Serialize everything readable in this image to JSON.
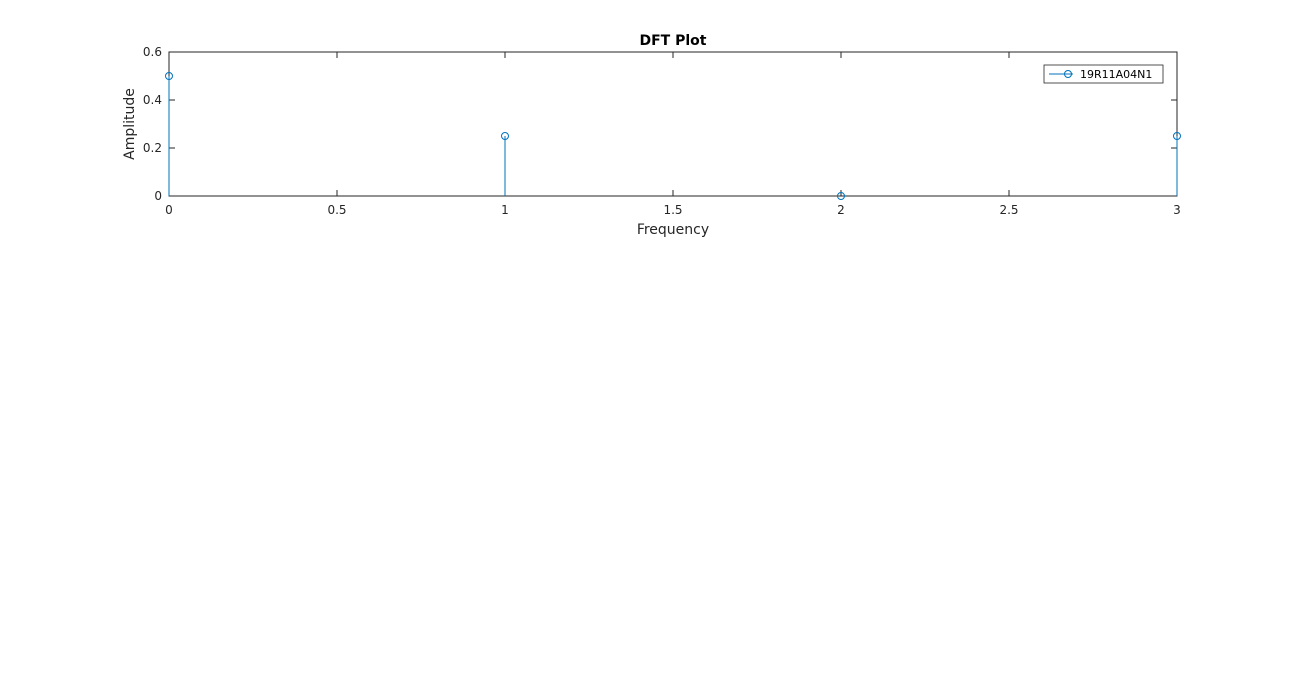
{
  "chart_data": {
    "type": "stem",
    "title": "DFT Plot",
    "xlabel": "Frequency",
    "ylabel": "Amplitude",
    "xlim": [
      0,
      3
    ],
    "ylim": [
      0,
      0.6
    ],
    "xticks": [
      0,
      0.5,
      1,
      1.5,
      2,
      2.5,
      3
    ],
    "xtick_labels": [
      "0",
      "0.5",
      "1",
      "1.5",
      "2",
      "2.5",
      "3"
    ],
    "yticks": [
      0,
      0.2,
      0.4,
      0.6
    ],
    "ytick_labels": [
      "0",
      "0.2",
      "0.4",
      "0.6"
    ],
    "grid": false,
    "legend_position": "top-right",
    "series": [
      {
        "name": "19R11A04N1",
        "color": "#0072BD",
        "marker": "circle",
        "x": [
          0,
          1,
          2,
          3
        ],
        "y": [
          0.5,
          0.25,
          0,
          0.25
        ]
      }
    ]
  }
}
